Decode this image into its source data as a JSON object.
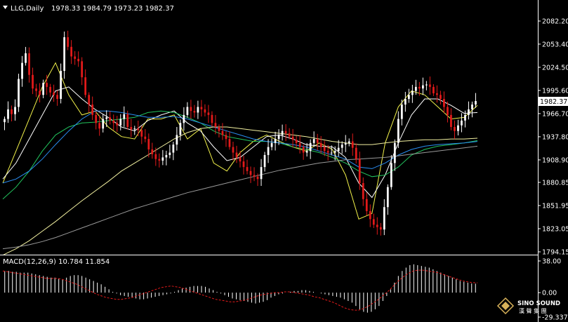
{
  "header": {
    "symbol": "LLG,Daily",
    "ohlc": "1978.33 1984.79 1973.23 1982.37",
    "menu_icon": "triangle-down-icon"
  },
  "macd_header": {
    "label": "MACD(12,26,9) 10.784 11.854"
  },
  "logo": {
    "line1": "SINO SOUND",
    "line2": "漢 聲 集 團"
  },
  "colors": {
    "background": "#000000",
    "bull_candle": "#ffffff",
    "bear_candle": "#e31a1a",
    "ma5": "#f2f24a",
    "ma10": "#ffffff",
    "ma20": "#22c55e",
    "ma30": "#2a8ef2",
    "ma60": "#f2f0a0",
    "ma120": "#9a9a9a",
    "macd_hist": "#ffffff",
    "macd_signal": "#e31a1a",
    "axis": "#ffffff",
    "price_tag_bg": "#ffffff"
  },
  "chart_data": [
    {
      "type": "candlestick",
      "title": "LLG,Daily",
      "y_axis": {
        "ticks": [
          "2082.20",
          "2053.40",
          "2024.50",
          "1995.60",
          "1966.70",
          "1937.80",
          "1908.90",
          "1880.85",
          "1851.95",
          "1823.05",
          "1794.15"
        ],
        "ylim": [
          1794.15,
          2082.2
        ]
      },
      "last_price": "1982.37",
      "close_path": [
        1960,
        1972,
        1966,
        1975,
        2010,
        2030,
        2042,
        2015,
        1998,
        1995,
        1990,
        2005,
        2000,
        1993,
        1990,
        1985,
        2020,
        2062,
        2050,
        2038,
        2035,
        2032,
        2012,
        1990,
        1978,
        1965,
        1955,
        1948,
        1960,
        1962,
        1958,
        1955,
        1952,
        1960,
        1966,
        1950,
        1947,
        1948,
        1946,
        1938,
        1935,
        1922,
        1916,
        1910,
        1908,
        1912,
        1915,
        1918,
        1928,
        1940,
        1955,
        1965,
        1975,
        1970,
        1968,
        1975,
        1972,
        1968,
        1965,
        1955,
        1950,
        1945,
        1940,
        1935,
        1925,
        1918,
        1912,
        1907,
        1900,
        1895,
        1890,
        1888,
        1885,
        1900,
        1915,
        1925,
        1930,
        1935,
        1940,
        1945,
        1942,
        1938,
        1934,
        1930,
        1925,
        1918,
        1920,
        1930,
        1935,
        1930,
        1925,
        1920,
        1918,
        1918,
        1920,
        1924,
        1928,
        1930,
        1932,
        1924,
        1910,
        1880,
        1860,
        1845,
        1835,
        1828,
        1825,
        1822,
        1850,
        1875,
        1905,
        1930,
        1960,
        1978,
        1985,
        1990,
        1995,
        2000,
        1998,
        2002,
        2003,
        2000,
        1992,
        1990,
        1985,
        1975,
        1965,
        1950,
        1945,
        1952,
        1958,
        1965,
        1972,
        1978,
        1982.37
      ],
      "series": [
        {
          "values": [
            1880,
            1920,
            1960,
            2000,
            2030,
            1990,
            1965,
            1970,
            1950,
            1938,
            1935,
            1960,
            1960,
            1965,
            1935,
            1948,
            1905,
            1895,
            1918,
            1932,
            1940,
            1932,
            1925,
            1920,
            1930,
            1922,
            1890,
            1835,
            1842,
            1930,
            1975,
            1995,
            1990,
            1975,
            1960,
            1962,
            1977
          ]
        },
        {
          "values": [
            1885,
            1905,
            1935,
            1965,
            1995,
            2000,
            1985,
            1972,
            1962,
            1950,
            1945,
            1958,
            1965,
            1970,
            1955,
            1945,
            1925,
            1908,
            1912,
            1925,
            1938,
            1940,
            1935,
            1928,
            1926,
            1925,
            1912,
            1880,
            1862,
            1890,
            1930,
            1965,
            1985,
            1985,
            1977,
            1967,
            1968
          ]
        },
        {
          "values": [
            1860,
            1875,
            1895,
            1920,
            1940,
            1950,
            1955,
            1956,
            1958,
            1960,
            1962,
            1968,
            1970,
            1968,
            1962,
            1955,
            1945,
            1938,
            1935,
            1932,
            1932,
            1930,
            1925,
            1922,
            1918,
            1912,
            1905,
            1895,
            1888,
            1890,
            1900,
            1915,
            1922,
            1926,
            1928,
            1930,
            1933
          ]
        },
        {
          "values": [
            1880,
            1885,
            1895,
            1910,
            1928,
            1945,
            1960,
            1970,
            1970,
            1968,
            1965,
            1962,
            1962,
            1963,
            1960,
            1955,
            1950,
            1945,
            1940,
            1935,
            1932,
            1930,
            1928,
            1925,
            1920,
            1915,
            1910,
            1900,
            1898,
            1905,
            1915,
            1922,
            1926,
            1928,
            1929,
            1930,
            1932
          ]
        },
        {
          "values": [
            1790,
            1798,
            1808,
            1820,
            1832,
            1845,
            1858,
            1870,
            1882,
            1895,
            1905,
            1915,
            1925,
            1935,
            1943,
            1948,
            1950,
            1950,
            1948,
            1946,
            1944,
            1942,
            1940,
            1938,
            1935,
            1932,
            1930,
            1928,
            1928,
            1930,
            1932,
            1933,
            1934,
            1934,
            1935,
            1935,
            1936
          ]
        },
        {
          "values": [
            1798,
            1800,
            1803,
            1807,
            1812,
            1818,
            1824,
            1830,
            1836,
            1842,
            1848,
            1853,
            1858,
            1863,
            1868,
            1872,
            1876,
            1880,
            1884,
            1888,
            1892,
            1896,
            1899,
            1902,
            1905,
            1907,
            1909,
            1910,
            1911,
            1912,
            1914,
            1916,
            1918,
            1920,
            1922,
            1924,
            1926
          ]
        }
      ]
    },
    {
      "type": "bar",
      "title": "MACD(12,26,9) 10.784 11.854",
      "y_axis": {
        "ticks": [
          "38.00",
          "0.00",
          "-29.337"
        ],
        "ylim": [
          -29.337,
          38.0
        ]
      },
      "macd": 10.784,
      "signal": 11.854,
      "histogram_path": [
        26,
        26,
        25,
        25,
        24,
        24,
        24,
        23,
        22,
        21,
        20,
        19,
        18,
        18,
        17,
        16,
        18,
        20,
        21,
        21,
        20,
        18,
        16,
        14,
        12,
        10,
        7,
        4,
        1,
        -1,
        -3,
        -4,
        -5,
        -6,
        -7,
        -8,
        -8,
        -7,
        -6,
        -5,
        -4,
        -3,
        -2,
        -1,
        1,
        3,
        5,
        6,
        7,
        8,
        8,
        8,
        7,
        5,
        3,
        1,
        -1,
        -3,
        -5,
        -7,
        -8,
        -9,
        -10,
        -11,
        -12,
        -13,
        -12,
        -11,
        -9,
        -6,
        -4,
        -2,
        -1,
        0,
        1,
        2,
        2,
        3,
        3,
        2,
        1,
        0,
        -1,
        -2,
        -3,
        -4,
        -5,
        -6,
        -8,
        -10,
        -12,
        -16,
        -20,
        -23,
        -24,
        -23,
        -20,
        -16,
        -10,
        -4,
        4,
        12,
        20,
        26,
        30,
        33,
        34,
        33,
        32,
        31,
        30,
        28,
        26,
        24,
        22,
        20,
        18,
        16,
        14,
        13,
        12,
        11,
        10.784
      ],
      "signal_path": [
        26,
        25,
        24,
        23,
        22,
        21,
        20,
        19,
        18,
        17,
        17,
        17,
        16,
        14,
        12,
        10,
        7,
        4,
        1,
        -2,
        -4,
        -6,
        -7,
        -8,
        -8,
        -7,
        -6,
        -4,
        -2,
        0,
        2,
        4,
        6,
        7,
        8,
        7,
        6,
        4,
        2,
        0,
        -2,
        -4,
        -6,
        -8,
        -9,
        -10,
        -11,
        -11,
        -10,
        -9,
        -7,
        -5,
        -3,
        -2,
        -1,
        0,
        0,
        1,
        1,
        0,
        -1,
        -2,
        -3,
        -5,
        -6,
        -8,
        -10,
        -12,
        -15,
        -18,
        -20,
        -21,
        -21,
        -19,
        -16,
        -12,
        -8,
        -3,
        2,
        8,
        14,
        19,
        23,
        26,
        27,
        27,
        26,
        25,
        24,
        22,
        20,
        18,
        16,
        14,
        13,
        12,
        11.854
      ]
    }
  ]
}
